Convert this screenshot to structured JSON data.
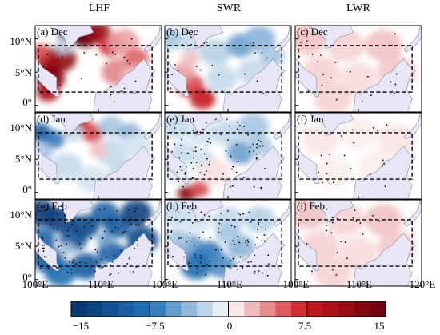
{
  "chart_data": {
    "type": "heatmap",
    "title": "",
    "columns": [
      "LHF",
      "SWR",
      "LWR"
    ],
    "panels": [
      {
        "label": "(a) Dec",
        "variable": "LHF",
        "month": "Dec",
        "pattern": "strong-positive-northwest",
        "stippled": true
      },
      {
        "label": "(b) Dec",
        "variable": "SWR",
        "month": "Dec",
        "pattern": "negative-north-positive-south",
        "stippled": true
      },
      {
        "label": "(c) Dec",
        "variable": "LWR",
        "month": "Dec",
        "pattern": "weak-positive",
        "stippled": true
      },
      {
        "label": "(d) Jan",
        "variable": "LHF",
        "month": "Jan",
        "pattern": "negative-west-positive-patch",
        "stippled": false
      },
      {
        "label": "(e) Jan",
        "variable": "SWR",
        "month": "Jan",
        "pattern": "mixed-positive-south",
        "stippled": true
      },
      {
        "label": "(f) Jan",
        "variable": "LWR",
        "month": "Jan",
        "pattern": "near-zero",
        "stippled": true
      },
      {
        "label": "(g) Feb",
        "variable": "LHF",
        "month": "Feb",
        "pattern": "strong-negative",
        "stippled": true
      },
      {
        "label": "(h) Feb",
        "variable": "SWR",
        "month": "Feb",
        "pattern": "negative-south",
        "stippled": true
      },
      {
        "label": "(i) Feb",
        "variable": "LWR",
        "month": "Feb",
        "pattern": "weak-positive",
        "stippled": true
      }
    ],
    "y_ticks": [
      "10°N",
      "5°N",
      "0°"
    ],
    "x_ticks": [
      "100°E",
      "110°E",
      "100°E",
      "110°E",
      "100°E",
      "110°E",
      "120°E"
    ],
    "xlim": [
      100,
      120
    ],
    "ylim": [
      -1,
      12
    ],
    "box": {
      "lon": [
        100.5,
        118.5
      ],
      "lat": [
        2,
        9
      ]
    },
    "colorbar": {
      "min": -15,
      "max": 15,
      "levels": 20,
      "tick_labels": [
        "−15",
        "−7.5",
        "0",
        "7.5",
        "15"
      ],
      "tick_values": [
        -15,
        -7.5,
        0,
        7.5,
        15
      ],
      "colors": {
        "negative_end": "#08306b",
        "center": "#ffffff",
        "positive_end": "#67000d"
      }
    },
    "land_color": "#e6e6f7",
    "stipple_color": "#000000"
  }
}
